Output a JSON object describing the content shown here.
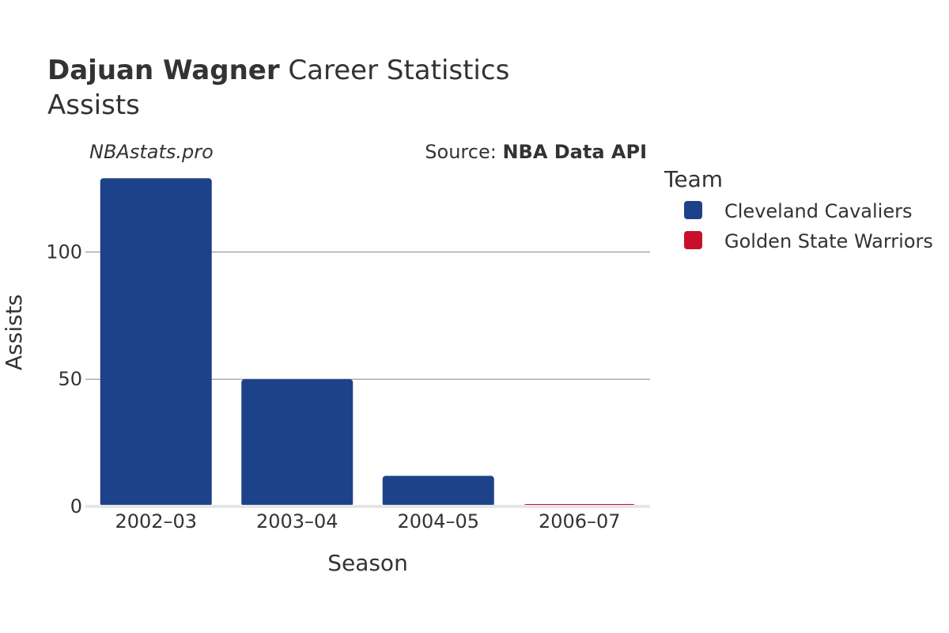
{
  "header": {
    "title_bold": "Dajuan Wagner",
    "title_rest": " Career Statistics",
    "subtitle": "Assists",
    "watermark": "NBAstats.pro",
    "source_prefix": "Source: ",
    "source_name": "NBA Data API"
  },
  "legend": {
    "title": "Team",
    "items": [
      {
        "label": "Cleveland Cavaliers",
        "color": "#1D428A"
      },
      {
        "label": "Golden State Warriors",
        "color": "#C8102E"
      }
    ]
  },
  "chart_data": {
    "type": "bar",
    "categories": [
      "2002–03",
      "2003–04",
      "2004–05",
      "2006–07"
    ],
    "series": [
      {
        "name": "Cleveland Cavaliers",
        "color": "#1D428A",
        "values": [
          129,
          50,
          12,
          null
        ]
      },
      {
        "name": "Golden State Warriors",
        "color": "#C8102E",
        "values": [
          null,
          null,
          null,
          0
        ]
      }
    ],
    "xlabel": "Season",
    "ylabel": "Assists",
    "ylim": [
      0,
      130
    ],
    "yticks": [
      0,
      50,
      100
    ],
    "grid": true,
    "legend_position": "right"
  }
}
